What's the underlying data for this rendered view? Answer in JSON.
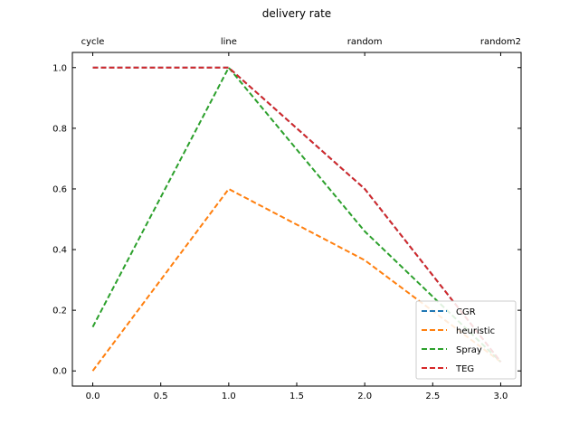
{
  "chart_data": {
    "type": "line",
    "title": "delivery rate",
    "xlabel": "",
    "ylabel": "",
    "xlim": [
      -0.15,
      3.15
    ],
    "ylim": [
      -0.05,
      1.05
    ],
    "x": [
      0,
      1,
      2,
      3
    ],
    "x_ticks": [
      "0.0",
      "0.5",
      "1.0",
      "1.5",
      "2.0",
      "2.5",
      "3.0"
    ],
    "x_tick_values": [
      0,
      0.5,
      1,
      1.5,
      2,
      2.5,
      3
    ],
    "y_ticks": [
      "0.0",
      "0.2",
      "0.4",
      "0.6",
      "0.8",
      "1.0"
    ],
    "y_tick_values": [
      0,
      0.2,
      0.4,
      0.6,
      0.8,
      1.0
    ],
    "top_categories": [
      "cycle",
      "line",
      "random",
      "random2"
    ],
    "grid": false,
    "legend_position": "lower-right",
    "series": [
      {
        "name": "CGR",
        "color": "#1f77b4",
        "values": [
          1.0,
          1.0,
          0.6,
          0.03
        ]
      },
      {
        "name": "heuristic",
        "color": "#ff7f0e",
        "values": [
          0.0,
          0.6,
          0.365,
          0.03
        ]
      },
      {
        "name": "Spray",
        "color": "#2ca02c",
        "values": [
          0.145,
          1.0,
          0.46,
          0.03
        ]
      },
      {
        "name": "TEG",
        "color": "#d62728",
        "values": [
          1.0,
          1.0,
          0.6,
          0.03
        ]
      }
    ]
  }
}
